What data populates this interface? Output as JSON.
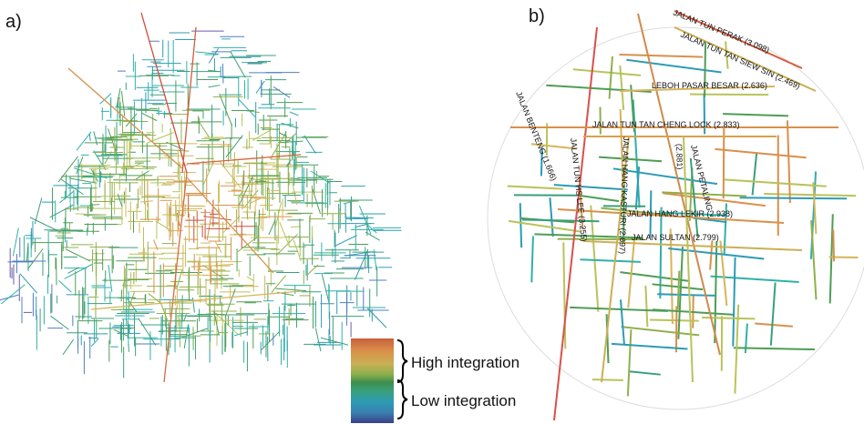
{
  "panels": [
    {
      "label": "a)"
    },
    {
      "label": "b)",
      "streets": [
        "JALAN TUN PERAK (3.098)",
        "JALAN TUN TAN SIEW SIN (2.469)",
        "LEBOH PASAR BESAR (2.636)",
        "JALAN TUN TAN CHENG LOCK (2.833)",
        "JALAN BENTENG (1.666)",
        "JALAN TUN HS LEE (3.255)",
        "JALAN HANG KASTURI (2.697)",
        "(2.881)",
        "JALAN PETALING",
        "JALAN HANG LEKIR (2.938)",
        "JALAN SULTAN (2.799)"
      ]
    }
  ],
  "legend": {
    "high": "High integration",
    "low": "Low integration"
  }
}
